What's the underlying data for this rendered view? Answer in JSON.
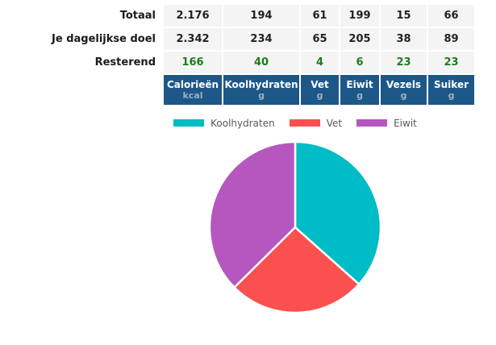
{
  "nutrition_table": {
    "columns": [
      {
        "name": "Calorieën",
        "unit": "kcal"
      },
      {
        "name": "Koolhydraten",
        "unit": "g"
      },
      {
        "name": "Vet",
        "unit": "g"
      },
      {
        "name": "Eiwit",
        "unit": "g"
      },
      {
        "name": "Vezels",
        "unit": "g"
      },
      {
        "name": "Suiker",
        "unit": "g"
      }
    ],
    "rows": [
      {
        "label": "Totaal",
        "values": [
          "2.176",
          "194",
          "61",
          "199",
          "15",
          "66"
        ]
      },
      {
        "label": "Je dagelijkse doel",
        "values": [
          "2.342",
          "234",
          "65",
          "205",
          "38",
          "89"
        ]
      },
      {
        "label": "Resterend",
        "values": [
          "166",
          "40",
          "4",
          "6",
          "23",
          "23"
        ]
      }
    ],
    "colors": {
      "header_bg": "#1D5788",
      "header_text": "#FFFFFF",
      "header_unit_text": "#9DAFC4",
      "cell_bg": "#F4F4F4",
      "remaining_text": "#1C7C1C"
    }
  },
  "chart_data": {
    "type": "pie",
    "title": "",
    "legend_position": "top",
    "start_angle_deg": 0,
    "direction": "clockwise",
    "slices": [
      {
        "label": "Koolhydraten",
        "percent": 36.6,
        "color": "#00BCC6"
      },
      {
        "label": "Vet",
        "percent": 26.0,
        "color": "#FA5150"
      },
      {
        "label": "Eiwit",
        "percent": 37.4,
        "color": "#B557BE"
      }
    ]
  }
}
